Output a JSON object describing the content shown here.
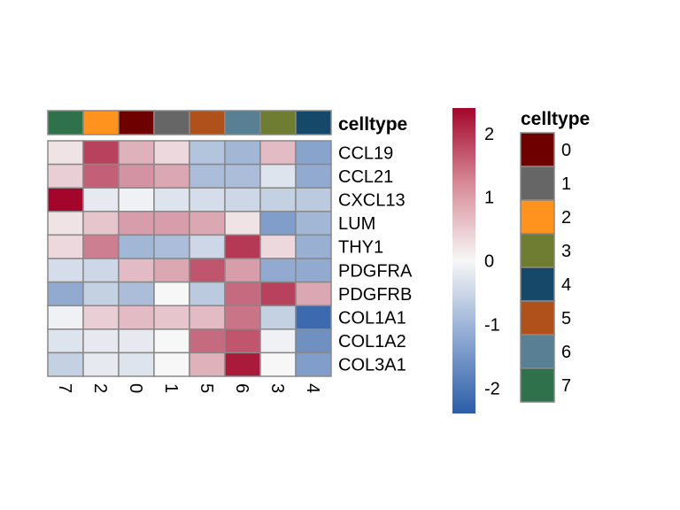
{
  "chart_data": {
    "type": "heatmap",
    "rows": [
      "CCL19",
      "CCL21",
      "CXCL13",
      "LUM",
      "THY1",
      "PDGFRA",
      "PDGFRB",
      "COL1A1",
      "COL1A2",
      "COL3A1"
    ],
    "columns": [
      "7",
      "2",
      "0",
      "1",
      "5",
      "6",
      "3",
      "4"
    ],
    "values": [
      [
        0.2,
        1.8,
        0.7,
        0.3,
        -0.8,
        -1.0,
        0.6,
        -1.3
      ],
      [
        0.4,
        1.5,
        1.0,
        0.8,
        -0.9,
        -0.9,
        -0.3,
        -1.2
      ],
      [
        2.4,
        -0.2,
        -0.1,
        -0.3,
        -0.4,
        -0.5,
        -0.6,
        -0.7
      ],
      [
        0.2,
        0.5,
        0.9,
        0.9,
        0.8,
        0.2,
        -1.4,
        -1.0
      ],
      [
        0.3,
        1.2,
        -1.0,
        -0.9,
        -0.5,
        1.9,
        0.3,
        -1.1
      ],
      [
        -0.4,
        -0.5,
        0.6,
        0.8,
        1.6,
        0.9,
        -1.2,
        -1.2
      ],
      [
        -1.2,
        -0.6,
        -0.9,
        0.0,
        -0.7,
        1.4,
        1.8,
        0.8
      ],
      [
        -0.1,
        0.4,
        0.6,
        0.5,
        0.6,
        1.3,
        -0.6,
        -2.2
      ],
      [
        -0.3,
        -0.2,
        -0.2,
        0.0,
        1.4,
        1.6,
        -0.1,
        -1.6
      ],
      [
        -0.6,
        -0.2,
        -0.3,
        0.0,
        0.7,
        2.2,
        0.0,
        -1.4
      ]
    ],
    "color_scale": {
      "low": "#2C5DA8",
      "mid": "#F7F7F7",
      "high": "#A3062A",
      "ticks": [
        2,
        1,
        0,
        -1,
        -2
      ],
      "range": [
        -2.4,
        2.4
      ]
    },
    "annotation": {
      "title": "celltype",
      "categories": [
        {
          "label": "0",
          "color": "#6E0000"
        },
        {
          "label": "1",
          "color": "#666666"
        },
        {
          "label": "2",
          "color": "#FF931E"
        },
        {
          "label": "3",
          "color": "#6F7D32"
        },
        {
          "label": "4",
          "color": "#164869"
        },
        {
          "label": "5",
          "color": "#B0501A"
        },
        {
          "label": "6",
          "color": "#587F93"
        },
        {
          "label": "7",
          "color": "#2F714B"
        }
      ]
    },
    "cell_border_color": "#888888"
  }
}
